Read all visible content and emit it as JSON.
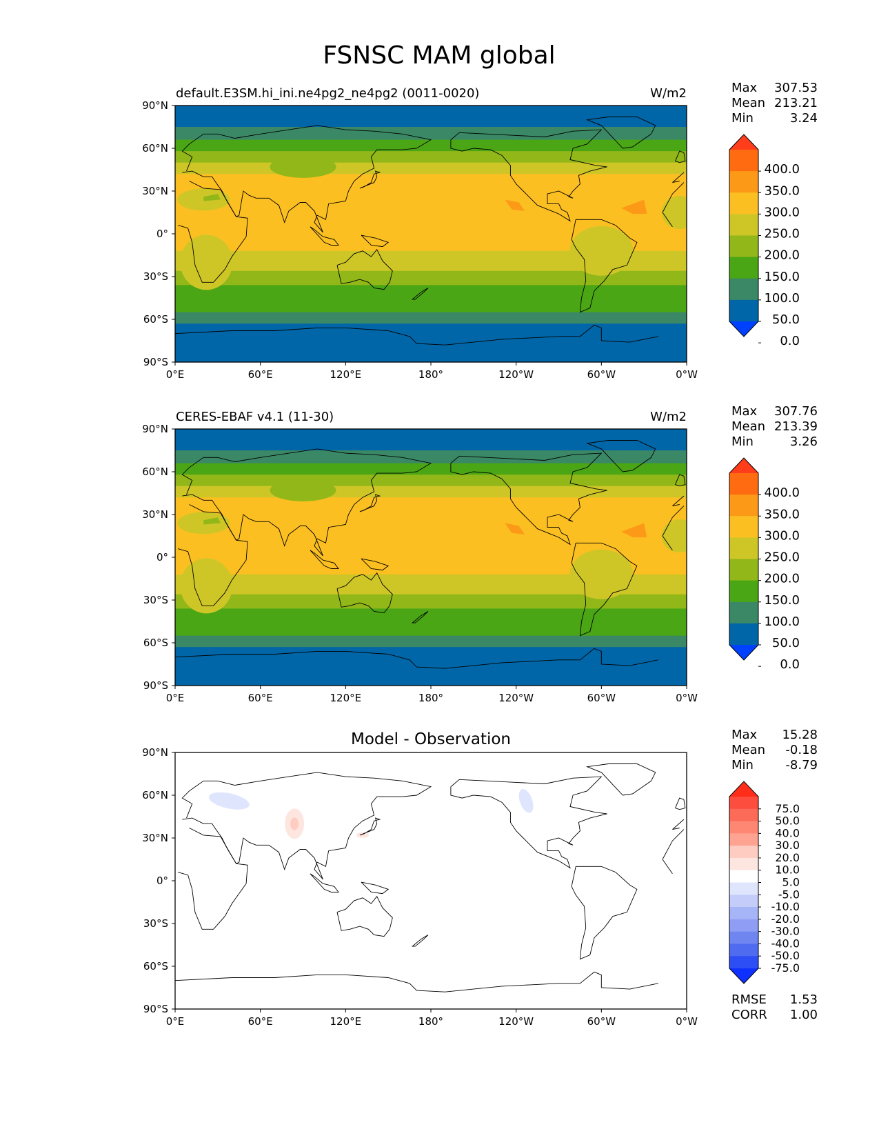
{
  "title": "FSNSC MAM global",
  "longitude_ticks": [
    "0°E",
    "60°E",
    "120°E",
    "180°",
    "120°W",
    "60°W",
    "0°W"
  ],
  "latitude_ticks": [
    "90°N",
    "60°N",
    "30°N",
    "0°",
    "30°S",
    "60°S",
    "90°S"
  ],
  "panels": [
    {
      "kind": "field",
      "title": "default.E3SM.hi_ini.ne4pg2_ne4pg2 (0011-0020)",
      "units": "W/m2",
      "stats": [
        {
          "label": "Max",
          "value": "307.53"
        },
        {
          "label": "Mean",
          "value": "213.21"
        },
        {
          "label": "Min",
          "value": "3.24"
        }
      ],
      "colorbar": {
        "labels": [
          "400.0",
          "350.0",
          "300.0",
          "250.0",
          "200.0",
          "150.0",
          "100.0",
          "50.0",
          "0.0"
        ],
        "colors_top_to_bottom": [
          "#ff3d1a",
          "#fe6b10",
          "#fc9a18",
          "#fcbf22",
          "#cec627",
          "#91b718",
          "#4aa614",
          "#3a8866",
          "#0066a7",
          "#0040ff"
        ]
      }
    },
    {
      "kind": "field",
      "title": "CERES-EBAF v4.1 (11-30)",
      "units": "W/m2",
      "stats": [
        {
          "label": "Max",
          "value": "307.76"
        },
        {
          "label": "Mean",
          "value": "213.39"
        },
        {
          "label": "Min",
          "value": "3.26"
        }
      ],
      "colorbar": {
        "labels": [
          "400.0",
          "350.0",
          "300.0",
          "250.0",
          "200.0",
          "150.0",
          "100.0",
          "50.0",
          "0.0"
        ],
        "colors_top_to_bottom": [
          "#ff3d1a",
          "#fe6b10",
          "#fc9a18",
          "#fcbf22",
          "#cec627",
          "#91b718",
          "#4aa614",
          "#3a8866",
          "#0066a7",
          "#0040ff"
        ]
      }
    },
    {
      "kind": "diff",
      "title": "Model - Observation",
      "units": "",
      "stats": [
        {
          "label": "Max",
          "value": "15.28"
        },
        {
          "label": "Mean",
          "value": "-0.18"
        },
        {
          "label": "Min",
          "value": "-8.79"
        }
      ],
      "colorbar": {
        "labels": [
          "75.0",
          "50.0",
          "40.0",
          "30.0",
          "20.0",
          "10.0",
          "5.0",
          "-5.0",
          "-10.0",
          "-20.0",
          "-30.0",
          "-40.0",
          "-50.0",
          "-75.0"
        ],
        "colors_top_to_bottom": [
          "#ff2d1a",
          "#fd4d3f",
          "#fc6a58",
          "#fd8773",
          "#fea292",
          "#feccc0",
          "#fee6e0",
          "#ffffff",
          "#dfe5fd",
          "#c4ccfa",
          "#a6b4f8",
          "#8f9ef4",
          "#6f86f0",
          "#4f6bf0",
          "#2d4ef5",
          "#0f31ff"
        ]
      },
      "extra_stats": [
        {
          "label": "RMSE",
          "value": "1.53"
        },
        {
          "label": "CORR",
          "value": "1.00"
        }
      ]
    }
  ],
  "colors": {
    "ocean_deep_blue": "#0066a7",
    "polar_teal": "#3a8866",
    "green": "#4aa614",
    "yellow_green": "#91b718",
    "olive_yellow": "#cec627",
    "orange_yellow": "#fcbf22",
    "orange": "#fc9a18"
  }
}
